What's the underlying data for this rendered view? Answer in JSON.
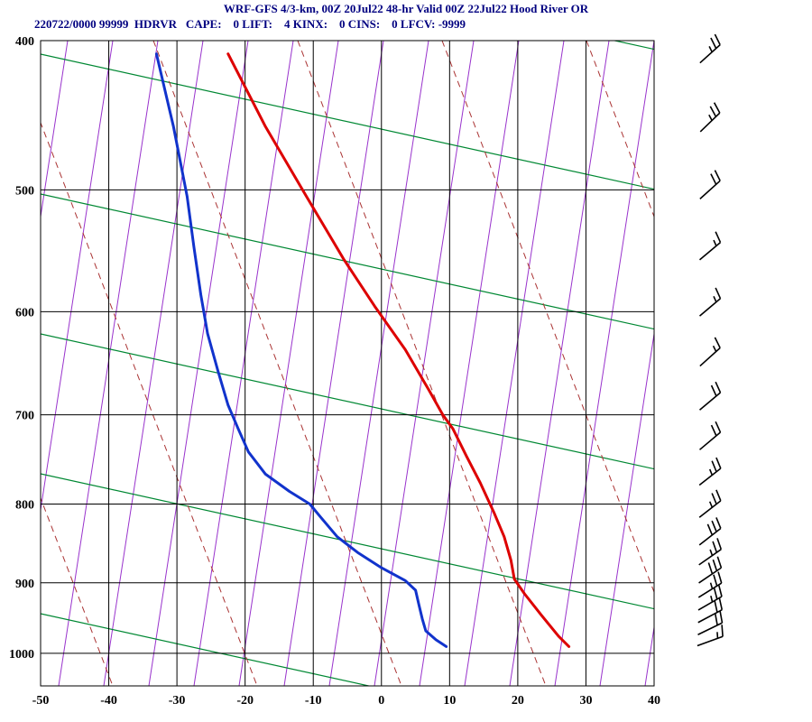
{
  "header": {
    "line1": "WRF-GFS 4/3-km, 00Z 20Jul22 48-hr Valid 00Z 22Jul22 Hood River OR",
    "line2": "220722/0000 99999  HDRVR   CAPE:    0 LIFT:    4 KINX:    0 CINS:    0 LFCV: -9999",
    "station": {
      "id_datetime": "220722/0000",
      "wmo_id": "99999",
      "site": "HDRVR"
    },
    "indices": {
      "CAPE": 0,
      "LIFT": 4,
      "KINX": 0,
      "CINS": 0,
      "LFCV": -9999
    }
  },
  "chart_data": {
    "type": "line",
    "subtype": "skewt-logp-sounding",
    "title": "WRF-GFS 4/3-km, 00Z 20Jul22 48-hr Valid 00Z 22Jul22 Hood River OR",
    "x_axis": {
      "unit": "C",
      "tick_values": [
        -50,
        -40,
        -30,
        -20,
        -10,
        0,
        10,
        20,
        30,
        40
      ],
      "range": [
        -50,
        40
      ]
    },
    "y_axis": {
      "unit": "mb",
      "tick_values": [
        400,
        500,
        600,
        700,
        800,
        900,
        1000
      ],
      "range": [
        400,
        1050
      ],
      "scale": "log"
    },
    "grid": {
      "color": "#000000",
      "on": true
    },
    "series": [
      {
        "name": "temperature",
        "color": "#dd0000",
        "width": 3,
        "points": [
          [
            408,
            -22.5
          ],
          [
            455,
            -17
          ],
          [
            505,
            -11
          ],
          [
            555,
            -5.5
          ],
          [
            595,
            -1
          ],
          [
            635,
            3.5
          ],
          [
            675,
            7
          ],
          [
            700,
            9
          ],
          [
            715,
            10.5
          ],
          [
            745,
            12.5
          ],
          [
            775,
            14.5
          ],
          [
            810,
            16.5
          ],
          [
            840,
            18
          ],
          [
            870,
            19
          ],
          [
            895,
            19.5
          ],
          [
            915,
            21
          ],
          [
            945,
            23.5
          ],
          [
            975,
            26
          ],
          [
            990,
            27.5
          ]
        ]
      },
      {
        "name": "dewpoint",
        "color": "#1133cc",
        "width": 3,
        "points": [
          [
            408,
            -33
          ],
          [
            455,
            -30.5
          ],
          [
            505,
            -28.5
          ],
          [
            545,
            -27.5
          ],
          [
            585,
            -26.5
          ],
          [
            620,
            -25.5
          ],
          [
            655,
            -24
          ],
          [
            690,
            -22.5
          ],
          [
            715,
            -21
          ],
          [
            740,
            -19.5
          ],
          [
            765,
            -17
          ],
          [
            785,
            -13.5
          ],
          [
            800,
            -10.5
          ],
          [
            815,
            -9
          ],
          [
            840,
            -6.5
          ],
          [
            860,
            -3.5
          ],
          [
            880,
            0
          ],
          [
            897,
            3.5
          ],
          [
            910,
            5
          ],
          [
            930,
            5.5
          ],
          [
            950,
            6
          ],
          [
            967,
            6.5
          ],
          [
            980,
            8
          ],
          [
            990,
            9.5
          ]
        ]
      }
    ],
    "reference_lines": {
      "isotherm_like": {
        "color": "#9933cc",
        "width": 1,
        "bottom_x_start": -85,
        "bottom_x_step": 50,
        "count": 20,
        "top_dx": 110
      },
      "green_diagonals": {
        "color": "#008833",
        "width": 1.2,
        "slope_dy_dx": 0.22,
        "y_at_left": [
          -95,
          60,
          215,
          370,
          525,
          680
        ]
      },
      "dashed_diagonals": {
        "color": "#aa3333",
        "width": 1,
        "dash": "7 5",
        "slope_dy_dx": 2.6,
        "x_at_top": [
          -310,
          -150,
          10,
          170,
          330,
          490,
          650,
          810
        ]
      }
    },
    "wind_barbs": {
      "color": "#000000",
      "column_x": 787,
      "staff_len": 30,
      "items": [
        {
          "p": 408,
          "azimuth_deg": 48,
          "full": 2,
          "half": 1,
          "speed_kt": 25
        },
        {
          "p": 452,
          "azimuth_deg": 46,
          "full": 2,
          "half": 1,
          "speed_kt": 25
        },
        {
          "p": 500,
          "azimuth_deg": 48,
          "full": 2,
          "half": 0,
          "speed_kt": 20
        },
        {
          "p": 548,
          "azimuth_deg": 50,
          "full": 1,
          "half": 1,
          "speed_kt": 15
        },
        {
          "p": 596,
          "azimuth_deg": 50,
          "full": 1,
          "half": 1,
          "speed_kt": 15
        },
        {
          "p": 642,
          "azimuth_deg": 48,
          "full": 1,
          "half": 1,
          "speed_kt": 15
        },
        {
          "p": 686,
          "azimuth_deg": 50,
          "full": 2,
          "half": 0,
          "speed_kt": 20
        },
        {
          "p": 728,
          "azimuth_deg": 50,
          "full": 2,
          "half": 0,
          "speed_kt": 20
        },
        {
          "p": 768,
          "azimuth_deg": 52,
          "full": 2,
          "half": 1,
          "speed_kt": 25
        },
        {
          "p": 806,
          "azimuth_deg": 52,
          "full": 2,
          "half": 1,
          "speed_kt": 25
        },
        {
          "p": 840,
          "azimuth_deg": 52,
          "full": 3,
          "half": 0,
          "speed_kt": 30
        },
        {
          "p": 866,
          "azimuth_deg": 55,
          "full": 2,
          "half": 1,
          "speed_kt": 25
        },
        {
          "p": 890,
          "azimuth_deg": 56,
          "full": 3,
          "half": 0,
          "speed_kt": 30
        },
        {
          "p": 910,
          "azimuth_deg": 58,
          "full": 2,
          "half": 1,
          "speed_kt": 25
        },
        {
          "p": 928,
          "azimuth_deg": 60,
          "full": 2,
          "half": 1,
          "speed_kt": 25
        },
        {
          "p": 946,
          "azimuth_deg": 62,
          "full": 2,
          "half": 0,
          "speed_kt": 20
        },
        {
          "p": 964,
          "azimuth_deg": 64,
          "full": 2,
          "half": 0,
          "speed_kt": 20
        },
        {
          "p": 982,
          "azimuth_deg": 70,
          "full": 1,
          "half": 1,
          "speed_kt": 15
        }
      ]
    }
  }
}
